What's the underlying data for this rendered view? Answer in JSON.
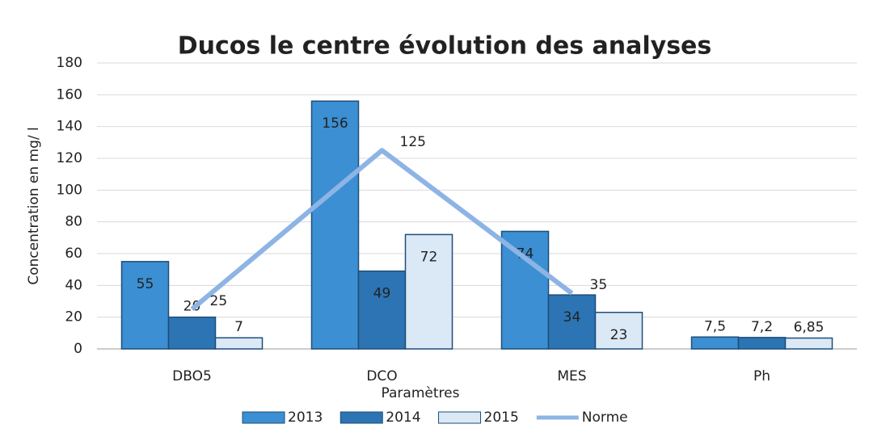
{
  "chart_data": {
    "type": "bar",
    "title": "Ducos le centre évolution des analyses",
    "x_label": "Paramètres",
    "y_label": "Concentration en mg/ l",
    "categories": [
      "DBO5",
      "DCO",
      "MES",
      "Ph"
    ],
    "series": [
      {
        "name": "2013",
        "color": "#3b8fd2",
        "values": [
          55,
          156,
          74,
          7.5
        ],
        "value_labels": [
          "55",
          "156",
          "74",
          "7,5"
        ]
      },
      {
        "name": "2014",
        "color": "#2c74b3",
        "values": [
          20,
          49,
          34,
          7.2
        ],
        "value_labels": [
          "20",
          "49",
          "34",
          "7,2"
        ]
      },
      {
        "name": "2015",
        "color": "#dbe8f6",
        "values": [
          7,
          72,
          23,
          6.85
        ],
        "value_labels": [
          "7",
          "72",
          "23",
          "6,85"
        ]
      },
      {
        "name": "Norme",
        "type": "line",
        "color": "#8db4e4",
        "values": [
          25,
          125,
          35,
          null
        ],
        "value_labels": [
          "25",
          "125",
          "35",
          null
        ]
      }
    ],
    "ylim": [
      0,
      180
    ],
    "yticks": [
      0,
      20,
      40,
      60,
      80,
      100,
      120,
      140,
      160,
      180
    ],
    "grid": true,
    "legend": "bottom"
  }
}
